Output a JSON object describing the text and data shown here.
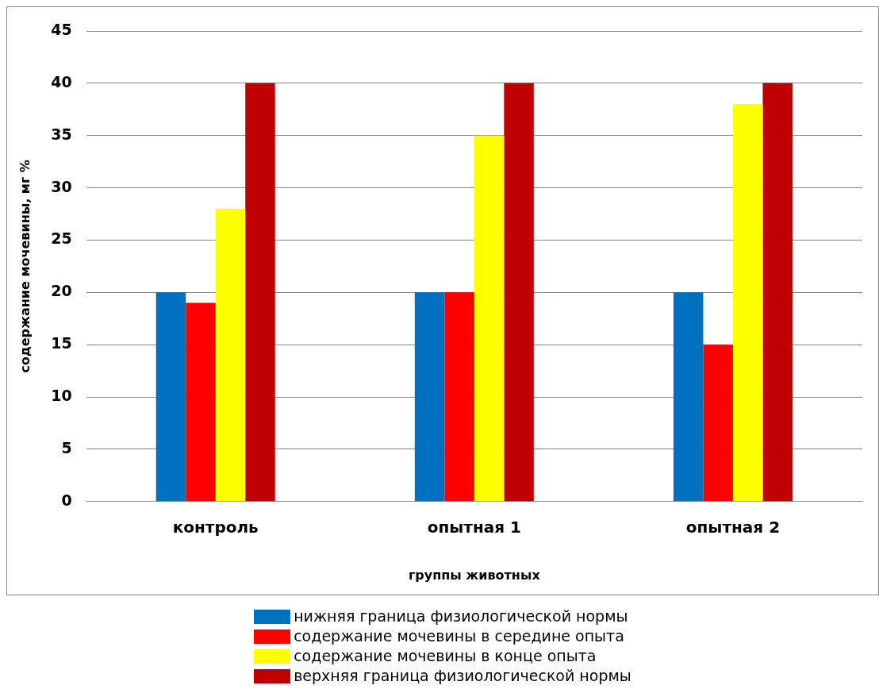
{
  "chart_data": {
    "type": "bar",
    "xlabel": "группы животных",
    "ylabel": "содержание мочевины, мг %",
    "categories": [
      "контроль",
      "опытная 1",
      "опытная 2"
    ],
    "series": [
      {
        "name": "нижняя граница физиологической нормы",
        "color": "#0070c0",
        "values": [
          20,
          20,
          20
        ]
      },
      {
        "name": "содержание мочевины в середине опыта",
        "color": "#ff0000",
        "values": [
          19,
          20,
          15
        ]
      },
      {
        "name": "содержание мочевины в конце опыта",
        "color": "#ffff00",
        "values": [
          28,
          35,
          38
        ]
      },
      {
        "name": "верхняя граница физиологической нормы",
        "color": "#c00000",
        "values": [
          40,
          40,
          40
        ]
      }
    ],
    "ylim": [
      0,
      45
    ],
    "yticks": [
      0,
      5,
      10,
      15,
      20,
      25,
      30,
      35,
      40,
      45
    ],
    "grid": "y",
    "legend": "bottom"
  }
}
